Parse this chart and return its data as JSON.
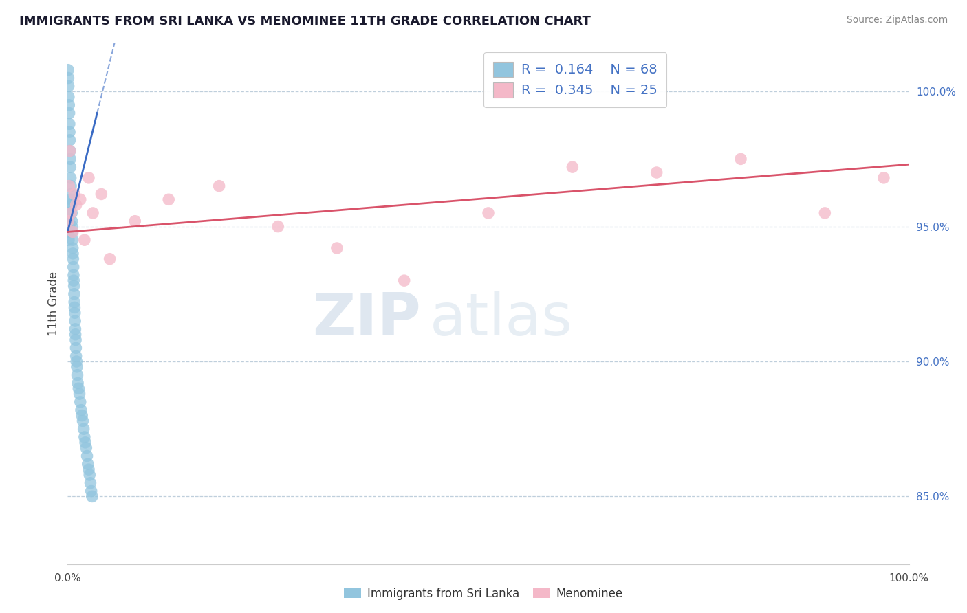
{
  "title": "IMMIGRANTS FROM SRI LANKA VS MENOMINEE 11TH GRADE CORRELATION CHART",
  "source_text": "Source: ZipAtlas.com",
  "ylabel": "11th Grade",
  "xlim": [
    0.0,
    100.0
  ],
  "ylim": [
    82.5,
    101.8
  ],
  "ytick_vals": [
    85.0,
    90.0,
    95.0,
    100.0
  ],
  "ytick_labels": [
    "85.0%",
    "90.0%",
    "95.0%",
    "100.0%"
  ],
  "legend_r1": "0.164",
  "legend_n1": "68",
  "legend_r2": "0.345",
  "legend_n2": "25",
  "blue_color": "#92c5de",
  "pink_color": "#f4b8c8",
  "trend_blue": "#3a6bc4",
  "trend_pink": "#d9536a",
  "watermark_zip": "ZIP",
  "watermark_atlas": "atlas",
  "blue_scatter_x": [
    0.05,
    0.08,
    0.1,
    0.12,
    0.15,
    0.18,
    0.2,
    0.22,
    0.25,
    0.28,
    0.3,
    0.32,
    0.35,
    0.38,
    0.4,
    0.42,
    0.45,
    0.48,
    0.5,
    0.52,
    0.55,
    0.58,
    0.6,
    0.62,
    0.65,
    0.68,
    0.7,
    0.72,
    0.75,
    0.78,
    0.8,
    0.82,
    0.85,
    0.88,
    0.9,
    0.92,
    0.95,
    0.98,
    1.0,
    1.05,
    1.1,
    1.15,
    1.2,
    1.3,
    1.4,
    1.5,
    1.6,
    1.7,
    1.8,
    1.9,
    2.0,
    2.1,
    2.2,
    2.3,
    2.4,
    2.5,
    2.6,
    2.7,
    2.8,
    2.9,
    0.05,
    0.08,
    0.1,
    0.12,
    0.05,
    0.08,
    0.1,
    0.12
  ],
  "blue_scatter_y": [
    100.8,
    100.5,
    100.2,
    99.8,
    99.5,
    99.2,
    98.8,
    98.5,
    98.2,
    97.8,
    97.5,
    97.2,
    96.8,
    96.5,
    96.2,
    96.0,
    95.8,
    95.5,
    95.2,
    95.0,
    94.8,
    94.5,
    94.2,
    94.0,
    93.8,
    93.5,
    93.2,
    93.0,
    92.8,
    92.5,
    92.2,
    92.0,
    91.8,
    91.5,
    91.2,
    91.0,
    90.8,
    90.5,
    90.2,
    90.0,
    89.8,
    89.5,
    89.2,
    89.0,
    88.8,
    88.5,
    88.2,
    88.0,
    87.8,
    87.5,
    87.2,
    87.0,
    86.8,
    86.5,
    86.2,
    86.0,
    85.8,
    85.5,
    85.2,
    85.0,
    95.2,
    95.5,
    95.8,
    95.0,
    94.8,
    95.5,
    95.2,
    94.5
  ],
  "pink_scatter_x": [
    0.05,
    0.15,
    0.25,
    0.4,
    0.6,
    0.8,
    1.0,
    1.5,
    2.0,
    2.5,
    3.0,
    4.0,
    5.0,
    8.0,
    12.0,
    18.0,
    25.0,
    32.0,
    40.0,
    50.0,
    60.0,
    70.0,
    80.0,
    90.0,
    97.0
  ],
  "pink_scatter_y": [
    95.2,
    96.5,
    97.8,
    95.5,
    94.8,
    96.2,
    95.8,
    96.0,
    94.5,
    96.8,
    95.5,
    96.2,
    93.8,
    95.2,
    96.0,
    96.5,
    95.0,
    94.2,
    93.0,
    95.5,
    97.2,
    97.0,
    97.5,
    95.5,
    96.8
  ],
  "blue_trend_x0": 0.0,
  "blue_trend_y0": 94.8,
  "blue_trend_x1": 3.5,
  "blue_trend_y1": 99.2,
  "pink_trend_x0": 0.0,
  "pink_trend_y0": 94.8,
  "pink_trend_x1": 100.0,
  "pink_trend_y1": 97.3
}
